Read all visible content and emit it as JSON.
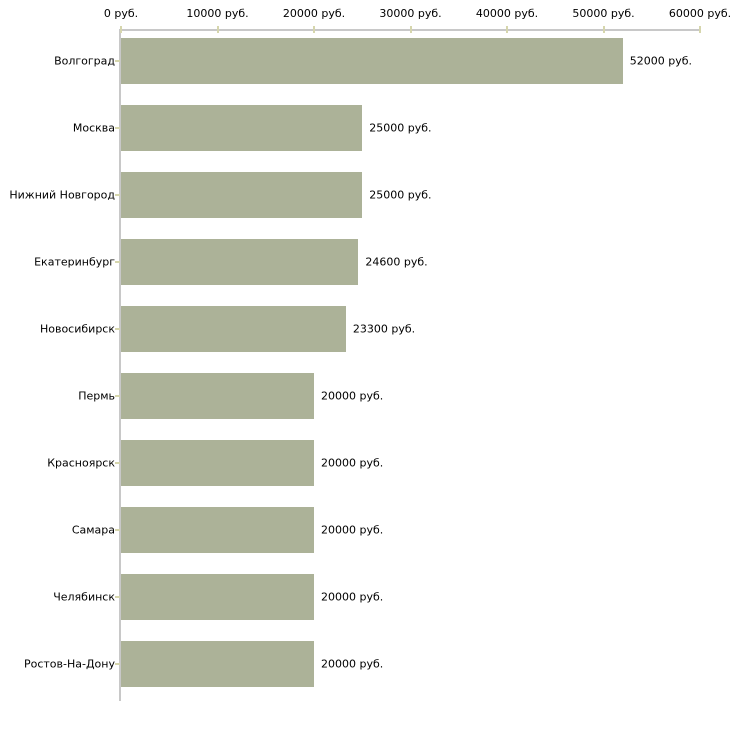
{
  "chart_data": {
    "type": "bar",
    "orientation": "horizontal",
    "title": "",
    "categories": [
      "Волгоград",
      "Москва",
      "Нижний Новгород",
      "Екатеринбург",
      "Новосибирск",
      "Пермь",
      "Красноярск",
      "Самара",
      "Челябинск",
      "Ростов-На-Дону"
    ],
    "values": [
      52000,
      25000,
      25000,
      24600,
      23300,
      20000,
      20000,
      20000,
      20000,
      20000
    ],
    "bar_labels": [
      "52000 руб.",
      "25000 руб.",
      "25000 руб.",
      "24600 руб.",
      "23300 руб.",
      "20000 руб.",
      "20000 руб.",
      "20000 руб.",
      "20000 руб.",
      "20000 руб."
    ],
    "unit": "руб.",
    "x_axis": {
      "position": "top",
      "min": 0,
      "max": 60000,
      "tick_step": 10000,
      "tick_labels": [
        "0 руб.",
        "10000 руб.",
        "20000 руб.",
        "30000 руб.",
        "40000 руб.",
        "50000 руб.",
        "60000 руб."
      ]
    },
    "grid": false,
    "legend": false,
    "colors": {
      "bar": "#acb298",
      "axis_line": "#c8c8c8",
      "tick_mark": "#d6d6ad",
      "text": "#000000",
      "background": "#ffffff"
    }
  }
}
